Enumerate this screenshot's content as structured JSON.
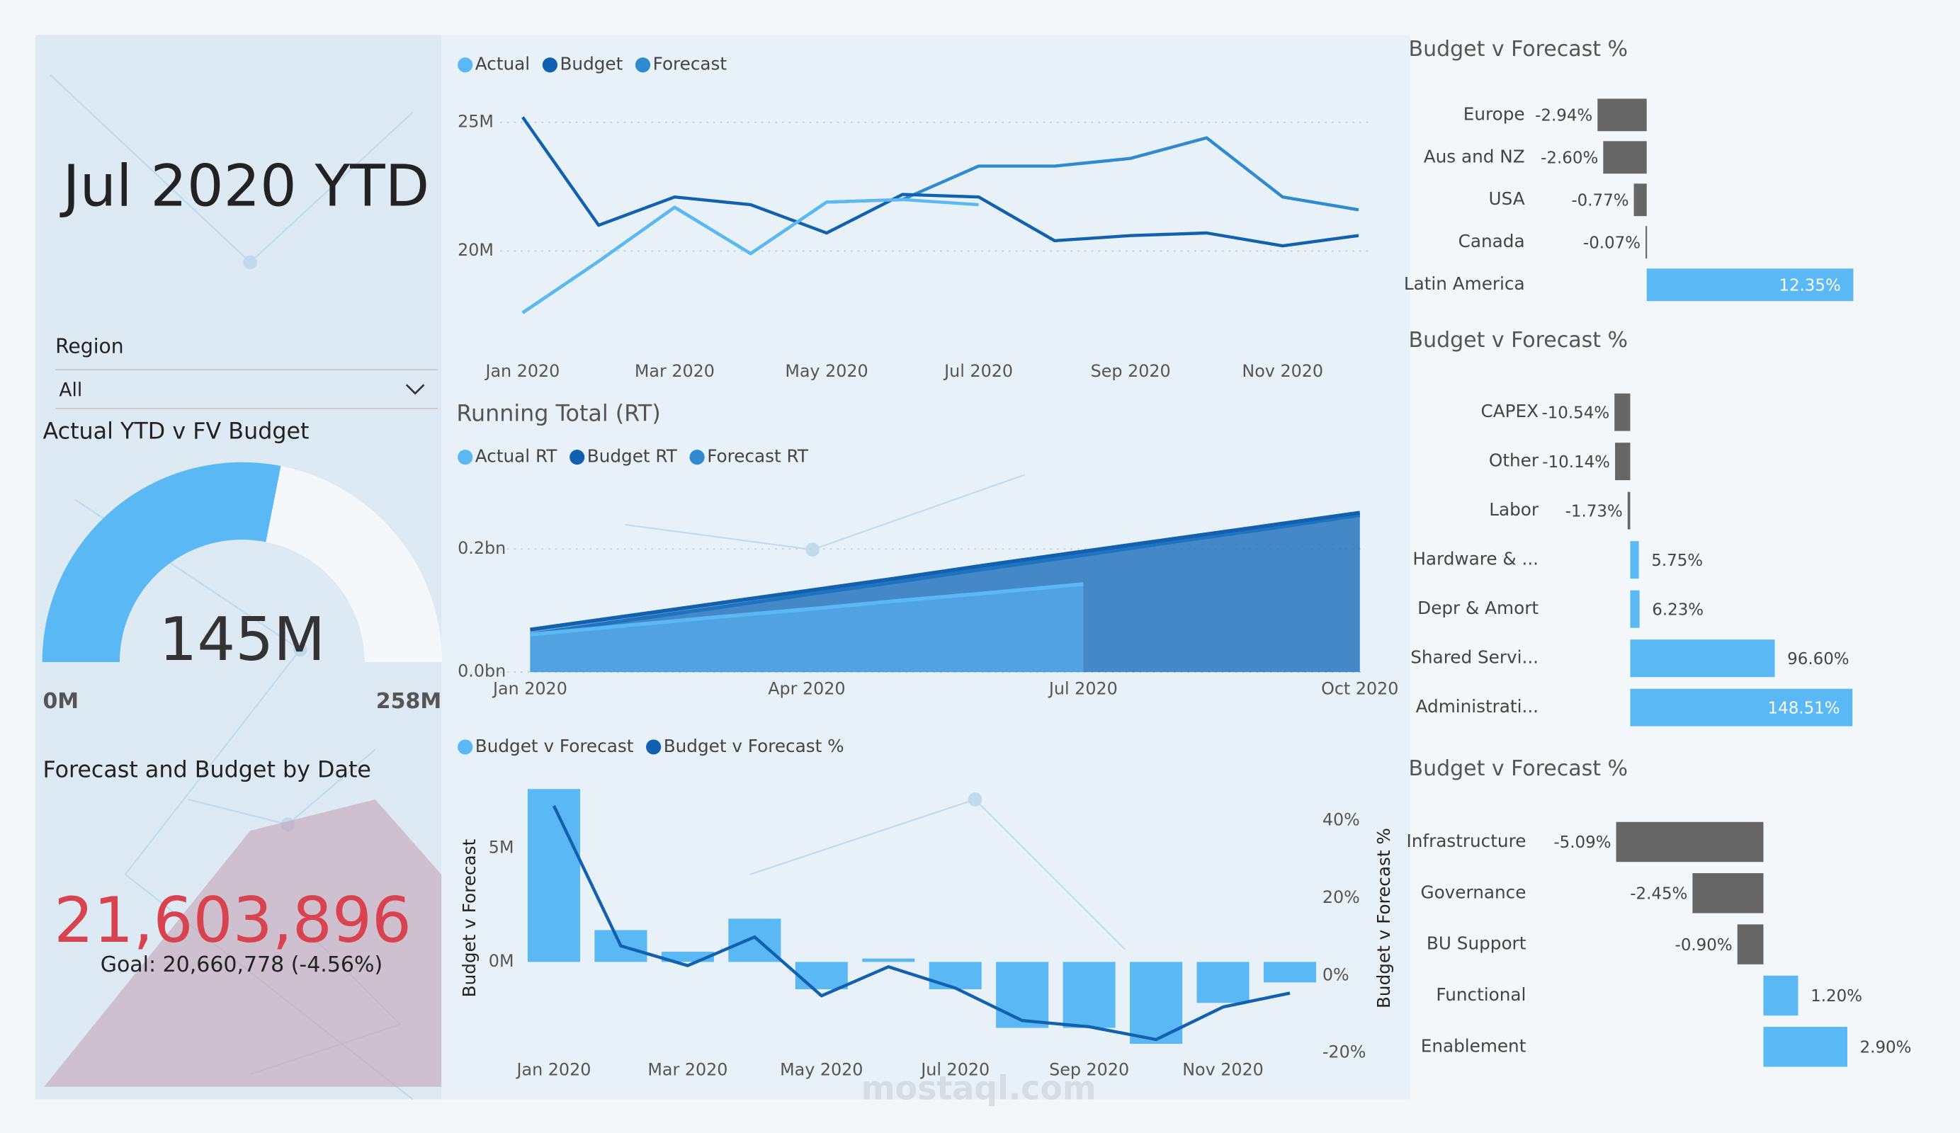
{
  "header": {
    "title": "Jul 2020 YTD"
  },
  "slicer": {
    "label": "Region",
    "value": "All"
  },
  "gauge": {
    "title": "Actual YTD v FV Budget",
    "value": {
      "value": 145,
      "label": "145M"
    },
    "min": {
      "value": 0,
      "label": "0M"
    },
    "max": {
      "value": 258,
      "label": "258M"
    },
    "color": "#5ab8f5"
  },
  "kpi": {
    "title": "Forecast and Budget by Date",
    "value": {
      "value": 21603896,
      "label": "21,603,896"
    },
    "goal": "Goal: 20,660,778 (-4.56%)",
    "color": "#d9434f"
  },
  "watermark": "mostaql.com",
  "chart_data": [
    {
      "type": "line",
      "categories": [
        "Jan 2020",
        null,
        "Mar 2020",
        null,
        "May 2020",
        null,
        "Jul 2020",
        null,
        "Sep 2020",
        null,
        "Nov 2020",
        null
      ],
      "series": [
        {
          "name": "Actual",
          "color": "#5ab8f5",
          "values": [
            17.6,
            19.6,
            21.7,
            19.9,
            21.9,
            22.0,
            21.8,
            null,
            null,
            null,
            null,
            null
          ]
        },
        {
          "name": "Budget",
          "color": "#1260b0",
          "values": [
            25.2,
            21.0,
            22.1,
            21.8,
            20.7,
            22.2,
            22.1,
            20.4,
            20.6,
            20.7,
            20.2,
            20.6
          ]
        },
        {
          "name": "Forecast",
          "color": "#2f8ad0",
          "values": [
            17.6,
            19.6,
            21.7,
            19.9,
            21.9,
            22.0,
            23.3,
            23.3,
            23.6,
            24.4,
            22.1,
            21.6
          ]
        }
      ],
      "ylim": [
        16.5,
        25.6
      ],
      "yticks": [
        {
          "value": 20,
          "label": "20M"
        },
        {
          "value": 25,
          "label": "25M"
        }
      ],
      "grid": true
    },
    {
      "type": "area",
      "title": "Running Total (RT)",
      "categories": [
        "Jan 2020",
        null,
        null,
        "Apr 2020",
        null,
        null,
        "Jul 2020",
        null,
        null,
        "Oct 2020"
      ],
      "series": [
        {
          "name": "Actual RT",
          "color": "#5ab8f5",
          "values": [
            0.061,
            0.075,
            0.089,
            0.102,
            0.116,
            0.129,
            0.143,
            null,
            null,
            null
          ]
        },
        {
          "name": "Budget RT",
          "color": "#1260b0",
          "values": [
            0.069,
            0.09,
            0.111,
            0.132,
            0.153,
            0.175,
            0.196,
            0.217,
            0.238,
            0.259
          ]
        },
        {
          "name": "Forecast RT",
          "color": "#2f8ad0",
          "values": [
            0.061,
            0.083,
            0.104,
            0.126,
            0.147,
            0.169,
            0.19,
            0.212,
            0.233,
            0.255
          ]
        }
      ],
      "ylim": [
        0,
        0.27
      ],
      "yticks": [
        {
          "value": 0,
          "label": "0.0bn"
        },
        {
          "value": 0.2,
          "label": "0.2bn"
        }
      ],
      "grid": true
    },
    {
      "type": "combo",
      "categories": [
        "Jan 2020",
        null,
        "Mar 2020",
        null,
        "May 2020",
        null,
        "Jul 2020",
        null,
        "Sep 2020",
        null,
        "Nov 2020",
        null
      ],
      "series": [
        {
          "name": "Budget v Forecast",
          "color": "#5ab8f5",
          "kind": "bar",
          "values": [
            7.6,
            1.4,
            0.45,
            1.9,
            -1.2,
            0.15,
            -1.2,
            -2.9,
            -2.9,
            -3.6,
            -1.8,
            -0.9
          ]
        },
        {
          "name": "Budget v Forecast %",
          "color": "#1260b0",
          "kind": "line",
          "axis": "y2",
          "values": [
            43.9,
            7.7,
            2.6,
            10.0,
            -5.2,
            2.3,
            -3.2,
            -11.6,
            -13.2,
            -16.5,
            -8.1,
            -4.5
          ]
        }
      ],
      "ylim": [
        -4.5,
        7.8
      ],
      "yticks": [
        {
          "value": 0,
          "label": "0M"
        },
        {
          "value": 5,
          "label": "5M"
        }
      ],
      "y2lim": [
        -22.9,
        49.4
      ],
      "y2ticks": [
        {
          "value": -20,
          "label": "-20%"
        },
        {
          "value": 0,
          "label": "0%"
        },
        {
          "value": 20,
          "label": "20%"
        },
        {
          "value": 40,
          "label": "40%"
        }
      ],
      "ylabel": "Budget v Forecast",
      "y2label": "Budget v Forecast %",
      "grid": false
    },
    {
      "type": "hbar",
      "title": "Budget v Forecast %",
      "categories": [
        "Europe",
        "Aus and NZ",
        "USA",
        "Canada",
        "Latin America"
      ],
      "values": [
        -2.94,
        -2.6,
        -0.77,
        -0.07,
        12.35
      ],
      "value_labels": [
        "-2.94%",
        "-2.60%",
        "-0.77%",
        "-0.07%",
        "12.35%"
      ],
      "xlim": [
        -4,
        14
      ],
      "color": "#5ab8f5",
      "negative_color": "#666666"
    },
    {
      "type": "hbar",
      "title": "Budget v Forecast %",
      "categories": [
        "CAPEX",
        "Other",
        "Labor",
        "Hardware & ...",
        "Depr & Amort",
        "Shared Servi...",
        "Administrati..."
      ],
      "values": [
        -10.54,
        -10.14,
        -1.73,
        5.75,
        6.23,
        96.6,
        148.51
      ],
      "value_labels": [
        "-10.54%",
        "-10.14%",
        "-1.73%",
        "5.75%",
        "6.23%",
        "96.60%",
        "148.51%"
      ],
      "xlim": [
        -12,
        150
      ],
      "color": "#5ab8f5",
      "negative_color": "#666666"
    },
    {
      "type": "hbar",
      "title": "Budget v Forecast %",
      "categories": [
        "Infrastructure",
        "Governance",
        "BU Support",
        "Functional",
        "Enablement"
      ],
      "values": [
        -5.09,
        -2.45,
        -0.9,
        1.2,
        2.9
      ],
      "value_labels": [
        "-5.09%",
        "-2.45%",
        "-0.90%",
        "1.20%",
        "2.90%"
      ],
      "xlim": [
        -6,
        3.5
      ],
      "color": "#5ab8f5",
      "negative_color": "#666666"
    }
  ]
}
